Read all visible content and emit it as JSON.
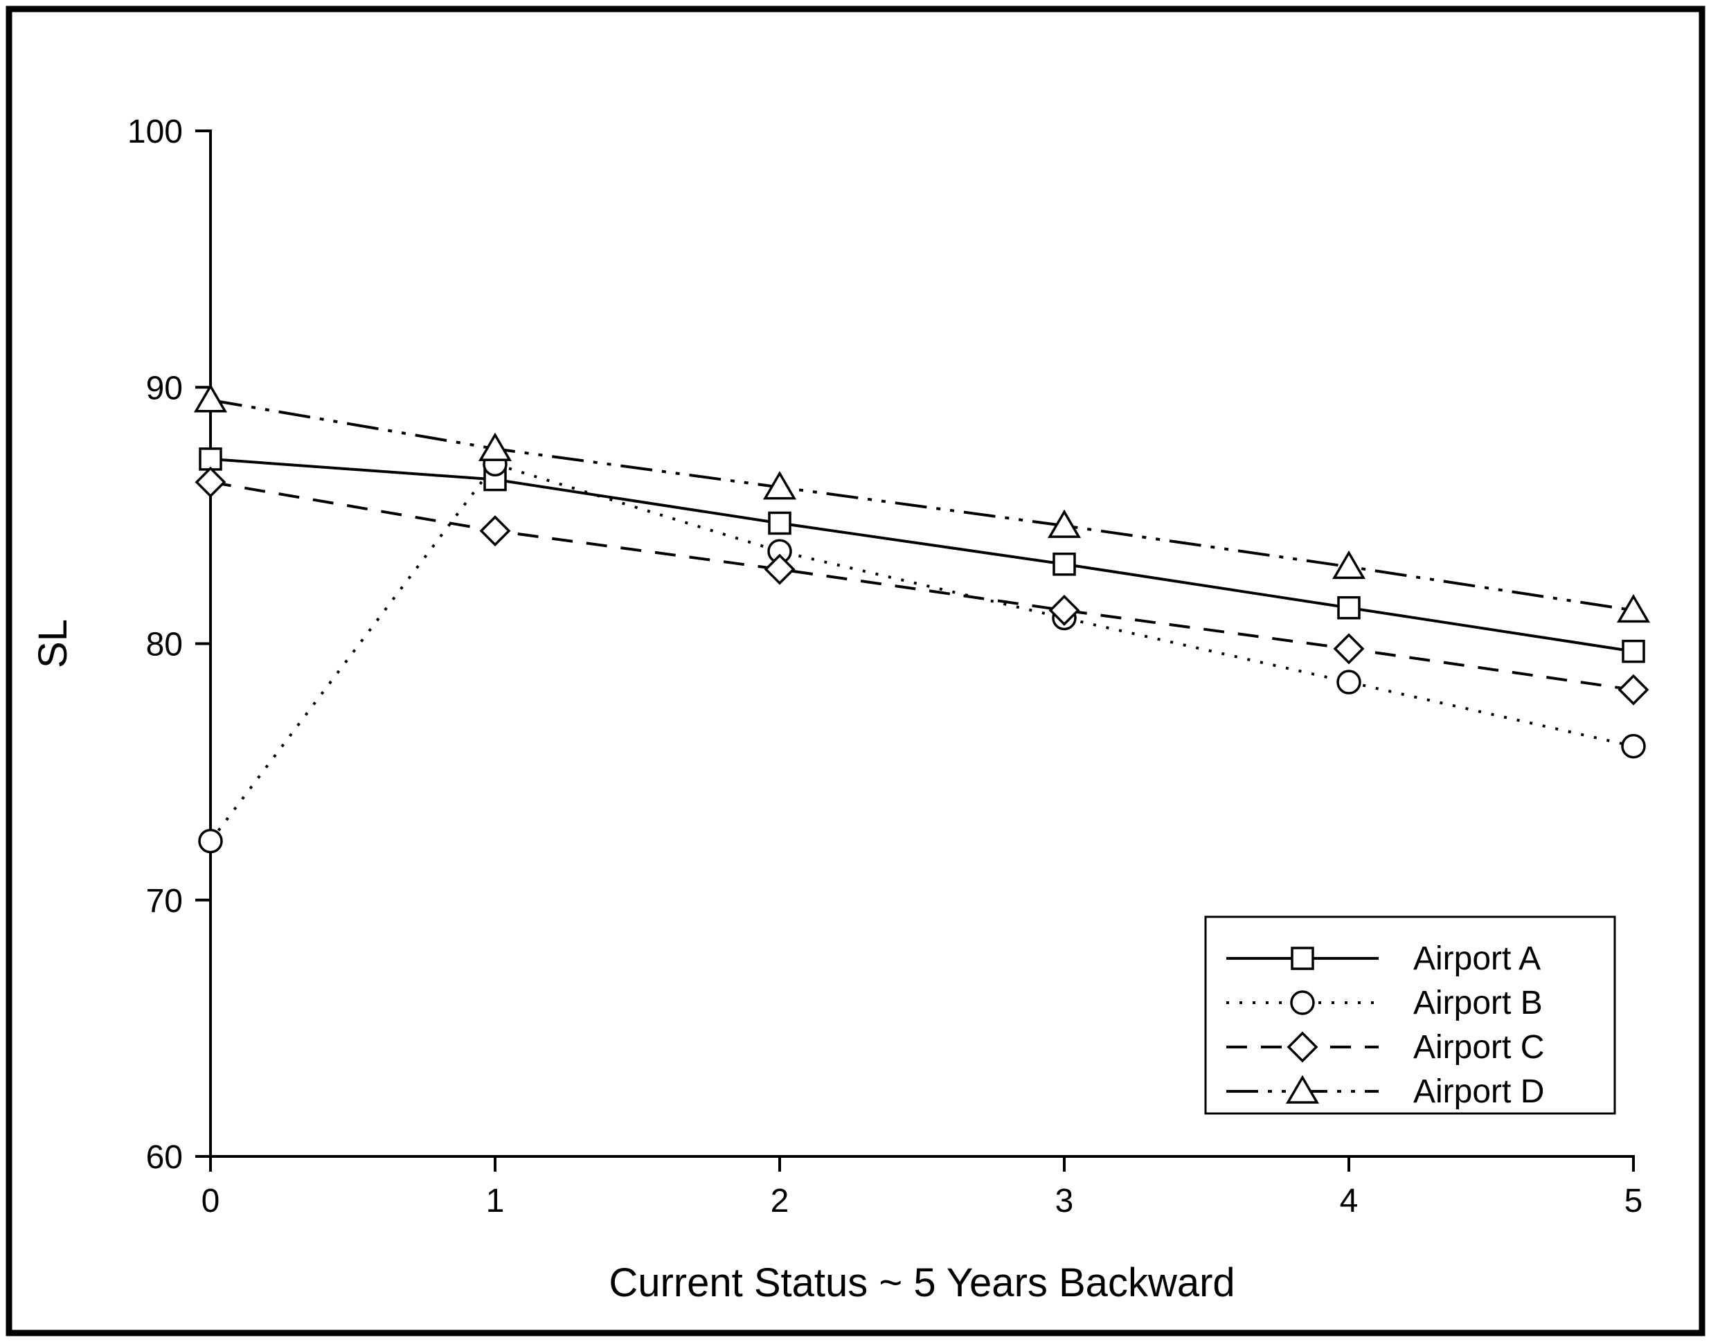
{
  "chart_data": {
    "type": "line",
    "title": "",
    "xlabel": "Current Status ~ 5 Years Backward",
    "ylabel": "SL",
    "xlim": [
      0,
      5
    ],
    "ylim": [
      60,
      100
    ],
    "xticks": [
      0,
      1,
      2,
      3,
      4,
      5
    ],
    "yticks": [
      60,
      70,
      80,
      90,
      100
    ],
    "x": [
      0,
      1,
      2,
      3,
      4,
      5
    ],
    "grid": false,
    "legend_position": "bottom-right",
    "series": [
      {
        "name": "Airport A",
        "marker": "square",
        "line": "solid",
        "values": [
          87.2,
          86.4,
          84.7,
          83.1,
          81.4,
          79.7
        ]
      },
      {
        "name": "Airport B",
        "marker": "circle",
        "line": "dotted",
        "values": [
          72.3,
          87.0,
          83.6,
          81.0,
          78.5,
          76.0
        ]
      },
      {
        "name": "Airport C",
        "marker": "diamond",
        "line": "dashed",
        "values": [
          86.3,
          84.4,
          82.9,
          81.3,
          79.8,
          78.2
        ]
      },
      {
        "name": "Airport D",
        "marker": "triangle",
        "line": "dashdotdot",
        "values": [
          89.5,
          87.6,
          86.1,
          84.6,
          83.0,
          81.3
        ]
      }
    ],
    "colors": {
      "stroke": "#000000",
      "background": "#ffffff",
      "marker_fill": "#ffffff"
    }
  }
}
